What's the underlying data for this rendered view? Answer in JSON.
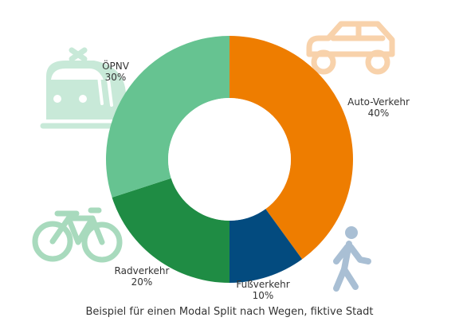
{
  "caption": "Beispiel für einen Modal Split nach Wegen, fiktive Stadt",
  "chart_data": {
    "type": "pie",
    "donut": true,
    "start_angle_deg": 0,
    "direction": "clockwise",
    "categories": [
      "Auto-Verkehr",
      "Fußverkehr",
      "Radverkehr",
      "ÖPNV"
    ],
    "values": [
      40,
      10,
      20,
      30
    ],
    "value_labels": [
      "40%",
      "10%",
      "20%",
      "30%"
    ],
    "colors": [
      "#EE7D00",
      "#034B7F",
      "#1F8C44",
      "#66C391"
    ],
    "legend": "none",
    "grid": false
  },
  "icons": [
    {
      "name": "car-icon",
      "color": "#F8D2AB"
    },
    {
      "name": "pedestrian-icon",
      "color": "#A9BFD4"
    },
    {
      "name": "bicycle-icon",
      "color": "#A8DABD"
    },
    {
      "name": "train-icon",
      "color": "#C8E9D8"
    }
  ]
}
